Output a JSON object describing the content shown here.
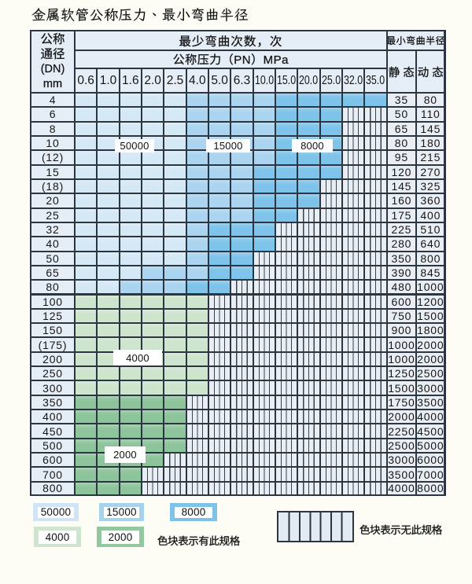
{
  "title": "金属软管公称压力、最小弯曲半径",
  "table": {
    "corner_header_lines": [
      "公称",
      "通径",
      "(DN)",
      "mm"
    ],
    "cycles_header": "最少弯曲次数，次",
    "pressure_header": "公称压力（PN）MPa",
    "radius_header": "最小弯曲半径",
    "static_header": "静 态",
    "dynamic_header": "动 态",
    "pressures": [
      "0.6",
      "1.0",
      "1.6",
      "2.0",
      "2.5",
      "4.0",
      "5.0",
      "6.3",
      "10.0",
      "15.0",
      "20.0",
      "25.0",
      "32.0",
      "35.0"
    ],
    "rows": [
      {
        "dn": "4",
        "cycles": [
          50000,
          50000,
          50000,
          50000,
          50000,
          15000,
          15000,
          15000,
          15000,
          8000,
          8000,
          8000,
          8000,
          8000
        ],
        "static": "35",
        "dynamic": "80"
      },
      {
        "dn": "6",
        "cycles": [
          50000,
          50000,
          50000,
          50000,
          50000,
          15000,
          15000,
          15000,
          15000,
          8000,
          8000,
          8000,
          null,
          null
        ],
        "static": "50",
        "dynamic": "110"
      },
      {
        "dn": "8",
        "cycles": [
          50000,
          50000,
          50000,
          50000,
          50000,
          15000,
          15000,
          15000,
          15000,
          8000,
          8000,
          8000,
          null,
          null
        ],
        "static": "65",
        "dynamic": "145"
      },
      {
        "dn": "10",
        "cycles": [
          50000,
          50000,
          50000,
          50000,
          50000,
          15000,
          15000,
          15000,
          15000,
          8000,
          8000,
          8000,
          null,
          null
        ],
        "static": "80",
        "dynamic": "180"
      },
      {
        "dn": "(12)",
        "cycles": [
          50000,
          50000,
          50000,
          50000,
          50000,
          15000,
          15000,
          15000,
          15000,
          8000,
          8000,
          8000,
          null,
          null
        ],
        "static": "95",
        "dynamic": "215"
      },
      {
        "dn": "15",
        "cycles": [
          50000,
          50000,
          50000,
          50000,
          50000,
          15000,
          15000,
          15000,
          8000,
          8000,
          8000,
          8000,
          null,
          null
        ],
        "static": "120",
        "dynamic": "270"
      },
      {
        "dn": "(18)",
        "cycles": [
          50000,
          50000,
          50000,
          50000,
          50000,
          15000,
          15000,
          15000,
          8000,
          8000,
          8000,
          null,
          null,
          null
        ],
        "static": "145",
        "dynamic": "325"
      },
      {
        "dn": "20",
        "cycles": [
          50000,
          50000,
          50000,
          50000,
          50000,
          15000,
          15000,
          15000,
          8000,
          8000,
          8000,
          null,
          null,
          null
        ],
        "static": "160",
        "dynamic": "360"
      },
      {
        "dn": "25",
        "cycles": [
          50000,
          50000,
          50000,
          50000,
          50000,
          15000,
          15000,
          15000,
          8000,
          8000,
          null,
          null,
          null,
          null
        ],
        "static": "175",
        "dynamic": "400"
      },
      {
        "dn": "32",
        "cycles": [
          50000,
          50000,
          50000,
          50000,
          50000,
          15000,
          8000,
          8000,
          8000,
          null,
          null,
          null,
          null,
          null
        ],
        "static": "225",
        "dynamic": "510"
      },
      {
        "dn": "40",
        "cycles": [
          50000,
          50000,
          50000,
          50000,
          50000,
          15000,
          8000,
          8000,
          8000,
          null,
          null,
          null,
          null,
          null
        ],
        "static": "280",
        "dynamic": "640"
      },
      {
        "dn": "50",
        "cycles": [
          50000,
          50000,
          50000,
          50000,
          50000,
          15000,
          8000,
          8000,
          null,
          null,
          null,
          null,
          null,
          null
        ],
        "static": "350",
        "dynamic": "800"
      },
      {
        "dn": "65",
        "cycles": [
          50000,
          50000,
          50000,
          15000,
          15000,
          15000,
          8000,
          8000,
          null,
          null,
          null,
          null,
          null,
          null
        ],
        "static": "390",
        "dynamic": "845"
      },
      {
        "dn": "80",
        "cycles": [
          50000,
          50000,
          15000,
          15000,
          15000,
          8000,
          8000,
          null,
          null,
          null,
          null,
          null,
          null,
          null
        ],
        "static": "480",
        "dynamic": "1000"
      },
      {
        "dn": "100",
        "cycles": [
          4000,
          4000,
          4000,
          4000,
          4000,
          4000,
          null,
          null,
          null,
          null,
          null,
          null,
          null,
          null
        ],
        "static": "600",
        "dynamic": "1200"
      },
      {
        "dn": "125",
        "cycles": [
          4000,
          4000,
          4000,
          4000,
          4000,
          4000,
          null,
          null,
          null,
          null,
          null,
          null,
          null,
          null
        ],
        "static": "750",
        "dynamic": "1500"
      },
      {
        "dn": "150",
        "cycles": [
          4000,
          4000,
          4000,
          4000,
          4000,
          4000,
          null,
          null,
          null,
          null,
          null,
          null,
          null,
          null
        ],
        "static": "900",
        "dynamic": "1800"
      },
      {
        "dn": "(175)",
        "cycles": [
          4000,
          4000,
          4000,
          4000,
          4000,
          4000,
          null,
          null,
          null,
          null,
          null,
          null,
          null,
          null
        ],
        "static": "1000",
        "dynamic": "2000"
      },
      {
        "dn": "200",
        "cycles": [
          4000,
          4000,
          4000,
          4000,
          4000,
          4000,
          null,
          null,
          null,
          null,
          null,
          null,
          null,
          null
        ],
        "static": "1000",
        "dynamic": "2000"
      },
      {
        "dn": "250",
        "cycles": [
          4000,
          4000,
          4000,
          4000,
          4000,
          4000,
          null,
          null,
          null,
          null,
          null,
          null,
          null,
          null
        ],
        "static": "1250",
        "dynamic": "2500"
      },
      {
        "dn": "300",
        "cycles": [
          4000,
          4000,
          4000,
          4000,
          4000,
          4000,
          null,
          null,
          null,
          null,
          null,
          null,
          null,
          null
        ],
        "static": "1500",
        "dynamic": "3000"
      },
      {
        "dn": "350",
        "cycles": [
          2000,
          2000,
          2000,
          2000,
          2000,
          null,
          null,
          null,
          null,
          null,
          null,
          null,
          null,
          null
        ],
        "static": "1750",
        "dynamic": "3500"
      },
      {
        "dn": "400",
        "cycles": [
          2000,
          2000,
          2000,
          2000,
          2000,
          null,
          null,
          null,
          null,
          null,
          null,
          null,
          null,
          null
        ],
        "static": "2000",
        "dynamic": "4000"
      },
      {
        "dn": "450",
        "cycles": [
          2000,
          2000,
          2000,
          2000,
          2000,
          null,
          null,
          null,
          null,
          null,
          null,
          null,
          null,
          null
        ],
        "static": "2250",
        "dynamic": "4500"
      },
      {
        "dn": "500",
        "cycles": [
          2000,
          2000,
          2000,
          2000,
          2000,
          null,
          null,
          null,
          null,
          null,
          null,
          null,
          null,
          null
        ],
        "static": "2500",
        "dynamic": "5000"
      },
      {
        "dn": "600",
        "cycles": [
          2000,
          2000,
          2000,
          2000,
          null,
          null,
          null,
          null,
          null,
          null,
          null,
          null,
          null,
          null
        ],
        "static": "3000",
        "dynamic": "6000"
      },
      {
        "dn": "700",
        "cycles": [
          2000,
          2000,
          2000,
          null,
          null,
          null,
          null,
          null,
          null,
          null,
          null,
          null,
          null,
          null
        ],
        "static": "3500",
        "dynamic": "7000"
      },
      {
        "dn": "800",
        "cycles": [
          2000,
          2000,
          2000,
          null,
          null,
          null,
          null,
          null,
          null,
          null,
          null,
          null,
          null,
          null
        ],
        "static": "4000",
        "dynamic": "8000"
      }
    ]
  },
  "zone_labels": [
    {
      "text": "50000"
    },
    {
      "text": "15000"
    },
    {
      "text": "8000"
    },
    {
      "text": "4000"
    },
    {
      "text": "2000"
    }
  ],
  "legend": {
    "items": [
      {
        "label": "50000",
        "cycles": 50000,
        "color": "#cfe4f4"
      },
      {
        "label": "15000",
        "cycles": 15000,
        "color": "#a6d2ee"
      },
      {
        "label": "8000",
        "cycles": 8000,
        "color": "#7cc2e9"
      },
      {
        "label": "4000",
        "cycles": 4000,
        "color": "#cfe5cf"
      },
      {
        "label": "2000",
        "cycles": 2000,
        "color": "#93c7a0"
      }
    ],
    "available_note": "色块表示有此规格",
    "unavailable_note": "色块表示无此规格"
  },
  "colors": {
    "grid": "#2b3640",
    "cell_50000": "#cfe4f4",
    "cell_15000": "#a6d2ee",
    "cell_8000": "#7cc2e9",
    "cell_4000": "#cfe5cf",
    "cell_2000": "#93c7a0",
    "cell_none": "#e7ecf3",
    "header_fill": "#e5edf6",
    "value_fill": "#e9eef5",
    "text": "#161616"
  }
}
